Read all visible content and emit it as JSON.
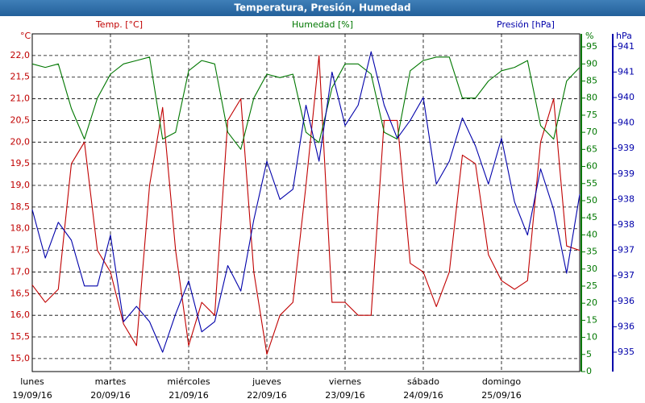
{
  "chart_data": {
    "type": "line",
    "title": "Temperatura, Presión, Humedad",
    "y_unit": "°C",
    "y2_unit": "%",
    "y3_unit": "hPa",
    "axis_titles": {
      "y": "Temp. [°C]",
      "y2": "Humedad [%]",
      "y3": "Presión [hPa]"
    },
    "x": [
      0,
      4,
      8,
      12,
      16,
      20,
      24,
      28,
      32,
      36,
      40,
      44,
      48,
      52,
      56,
      60,
      64,
      68,
      72,
      76,
      80,
      84,
      88,
      92,
      96,
      100,
      104,
      108,
      112,
      116,
      120,
      124,
      128,
      132,
      136,
      140,
      144,
      148,
      152,
      156,
      160,
      164,
      168
    ],
    "xlim": [
      0,
      168
    ],
    "xticks": [
      {
        "value": 0,
        "label": "lunes",
        "date": "19/09/16"
      },
      {
        "value": 24,
        "label": "martes",
        "date": "20/09/16"
      },
      {
        "value": 48,
        "label": "miércoles",
        "date": "21/09/16"
      },
      {
        "value": 72,
        "label": "jueves",
        "date": "22/09/16"
      },
      {
        "value": 96,
        "label": "viernes",
        "date": "23/09/16"
      },
      {
        "value": 120,
        "label": "sábado",
        "date": "24/09/16"
      },
      {
        "value": 144,
        "label": "domingo",
        "date": "25/09/16"
      }
    ],
    "ylim": [
      14.7,
      22.5
    ],
    "yticks": [
      {
        "value": 15,
        "label": "15,0"
      },
      {
        "value": 15.5,
        "label": "15,5"
      },
      {
        "value": 16,
        "label": "16,0"
      },
      {
        "value": 16.5,
        "label": "16,5"
      },
      {
        "value": 17,
        "label": "17,0"
      },
      {
        "value": 17.5,
        "label": "17,5"
      },
      {
        "value": 18,
        "label": "18,0"
      },
      {
        "value": 18.5,
        "label": "18,5"
      },
      {
        "value": 19,
        "label": "19,0"
      },
      {
        "value": 19.5,
        "label": "19,5"
      },
      {
        "value": 20,
        "label": "20,0"
      },
      {
        "value": 20.5,
        "label": "20,5"
      },
      {
        "value": 21,
        "label": "21,0"
      },
      {
        "value": 21.5,
        "label": "21,5"
      },
      {
        "value": 22,
        "label": "22,0"
      }
    ],
    "y2lim": [
      0,
      98.8
    ],
    "y2ticks": [
      0,
      5,
      10,
      15,
      20,
      25,
      30,
      35,
      40,
      45,
      50,
      55,
      60,
      65,
      70,
      75,
      80,
      85,
      90,
      95
    ],
    "y3lim": [
      934.62,
      941.25
    ],
    "y3ticks": [
      {
        "value": 935,
        "label": "935"
      },
      {
        "value": 935.5,
        "label": "936"
      },
      {
        "value": 936,
        "label": "936"
      },
      {
        "value": 936.5,
        "label": "937"
      },
      {
        "value": 937,
        "label": "937"
      },
      {
        "value": 937.5,
        "label": "938"
      },
      {
        "value": 938,
        "label": "938"
      },
      {
        "value": 938.5,
        "label": "939"
      },
      {
        "value": 939,
        "label": "939"
      },
      {
        "value": 939.5,
        "label": "940"
      },
      {
        "value": 940,
        "label": "940"
      },
      {
        "value": 940.5,
        "label": "941"
      },
      {
        "value": 941,
        "label": "941"
      }
    ],
    "grid": true,
    "series": [
      {
        "name": "Temp.",
        "color": "#c00000",
        "axis": "y",
        "values": [
          16.7,
          16.3,
          16.6,
          19.5,
          20.0,
          17.5,
          17.0,
          15.8,
          15.3,
          19.0,
          20.8,
          17.5,
          15.3,
          16.3,
          16.0,
          20.5,
          21.0,
          17.0,
          15.1,
          16.0,
          16.3,
          19.0,
          22.0,
          16.3,
          16.3,
          16.0,
          16.0,
          20.5,
          20.5,
          17.2,
          17.0,
          16.2,
          17.0,
          19.7,
          19.5,
          17.4,
          16.8,
          16.6,
          16.8,
          20.0,
          21.0,
          17.6,
          17.5
        ]
      },
      {
        "name": "Humedad",
        "color": "#007700",
        "axis": "y2",
        "values": [
          90,
          89,
          90,
          77,
          68,
          80,
          87,
          90,
          91,
          92,
          68,
          70,
          88,
          91,
          90,
          70,
          65,
          80,
          87,
          86,
          87,
          70,
          67,
          83,
          90,
          90,
          87,
          70,
          68,
          88,
          91,
          92,
          92,
          80,
          80,
          85,
          88,
          89,
          91,
          72,
          68,
          85,
          89
        ]
      },
      {
        "name": "Presión",
        "color": "#0000aa",
        "axis": "y3",
        "values": [
          937.8,
          936.85,
          937.55,
          937.2,
          936.3,
          936.3,
          937.3,
          935.6,
          935.9,
          935.6,
          935.0,
          935.75,
          936.4,
          935.4,
          935.6,
          936.7,
          936.2,
          937.6,
          938.75,
          938.0,
          938.2,
          939.85,
          938.75,
          940.5,
          939.45,
          939.85,
          940.9,
          939.85,
          939.2,
          939.55,
          940.0,
          938.3,
          938.75,
          939.6,
          939.05,
          938.3,
          939.2,
          937.95,
          937.3,
          938.6,
          937.8,
          936.55,
          938.1
        ]
      }
    ]
  }
}
